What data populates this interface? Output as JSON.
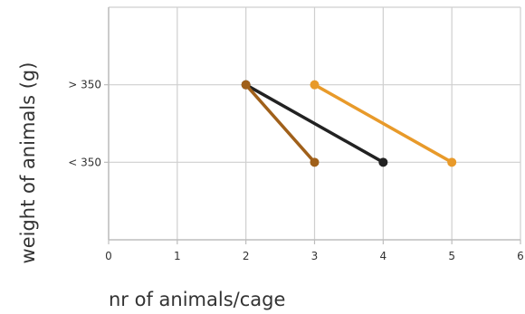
{
  "chart_data": {
    "type": "line",
    "xlabel": "nr of animals/cage",
    "ylabel": "weight of animals (g)",
    "x_ticks": [
      "0",
      "1",
      "2",
      "3",
      "4",
      "5",
      "6"
    ],
    "xlim": [
      0,
      6
    ],
    "y_categories": [
      "< 350",
      "> 350"
    ],
    "ylim": [
      -1.5,
      1.5
    ],
    "grid": true,
    "legend": "none",
    "series": [
      {
        "color": "#e89a2a",
        "points": [
          {
            "x": 3,
            "y": "> 350"
          },
          {
            "x": 5,
            "y": "< 350"
          }
        ]
      },
      {
        "color": "#222222",
        "points": [
          {
            "x": 2,
            "y": "> 350"
          },
          {
            "x": 4,
            "y": "< 350"
          }
        ]
      },
      {
        "color": "#a0601a",
        "points": [
          {
            "x": 2,
            "y": "> 350"
          },
          {
            "x": 3,
            "y": "< 350"
          }
        ]
      }
    ]
  }
}
